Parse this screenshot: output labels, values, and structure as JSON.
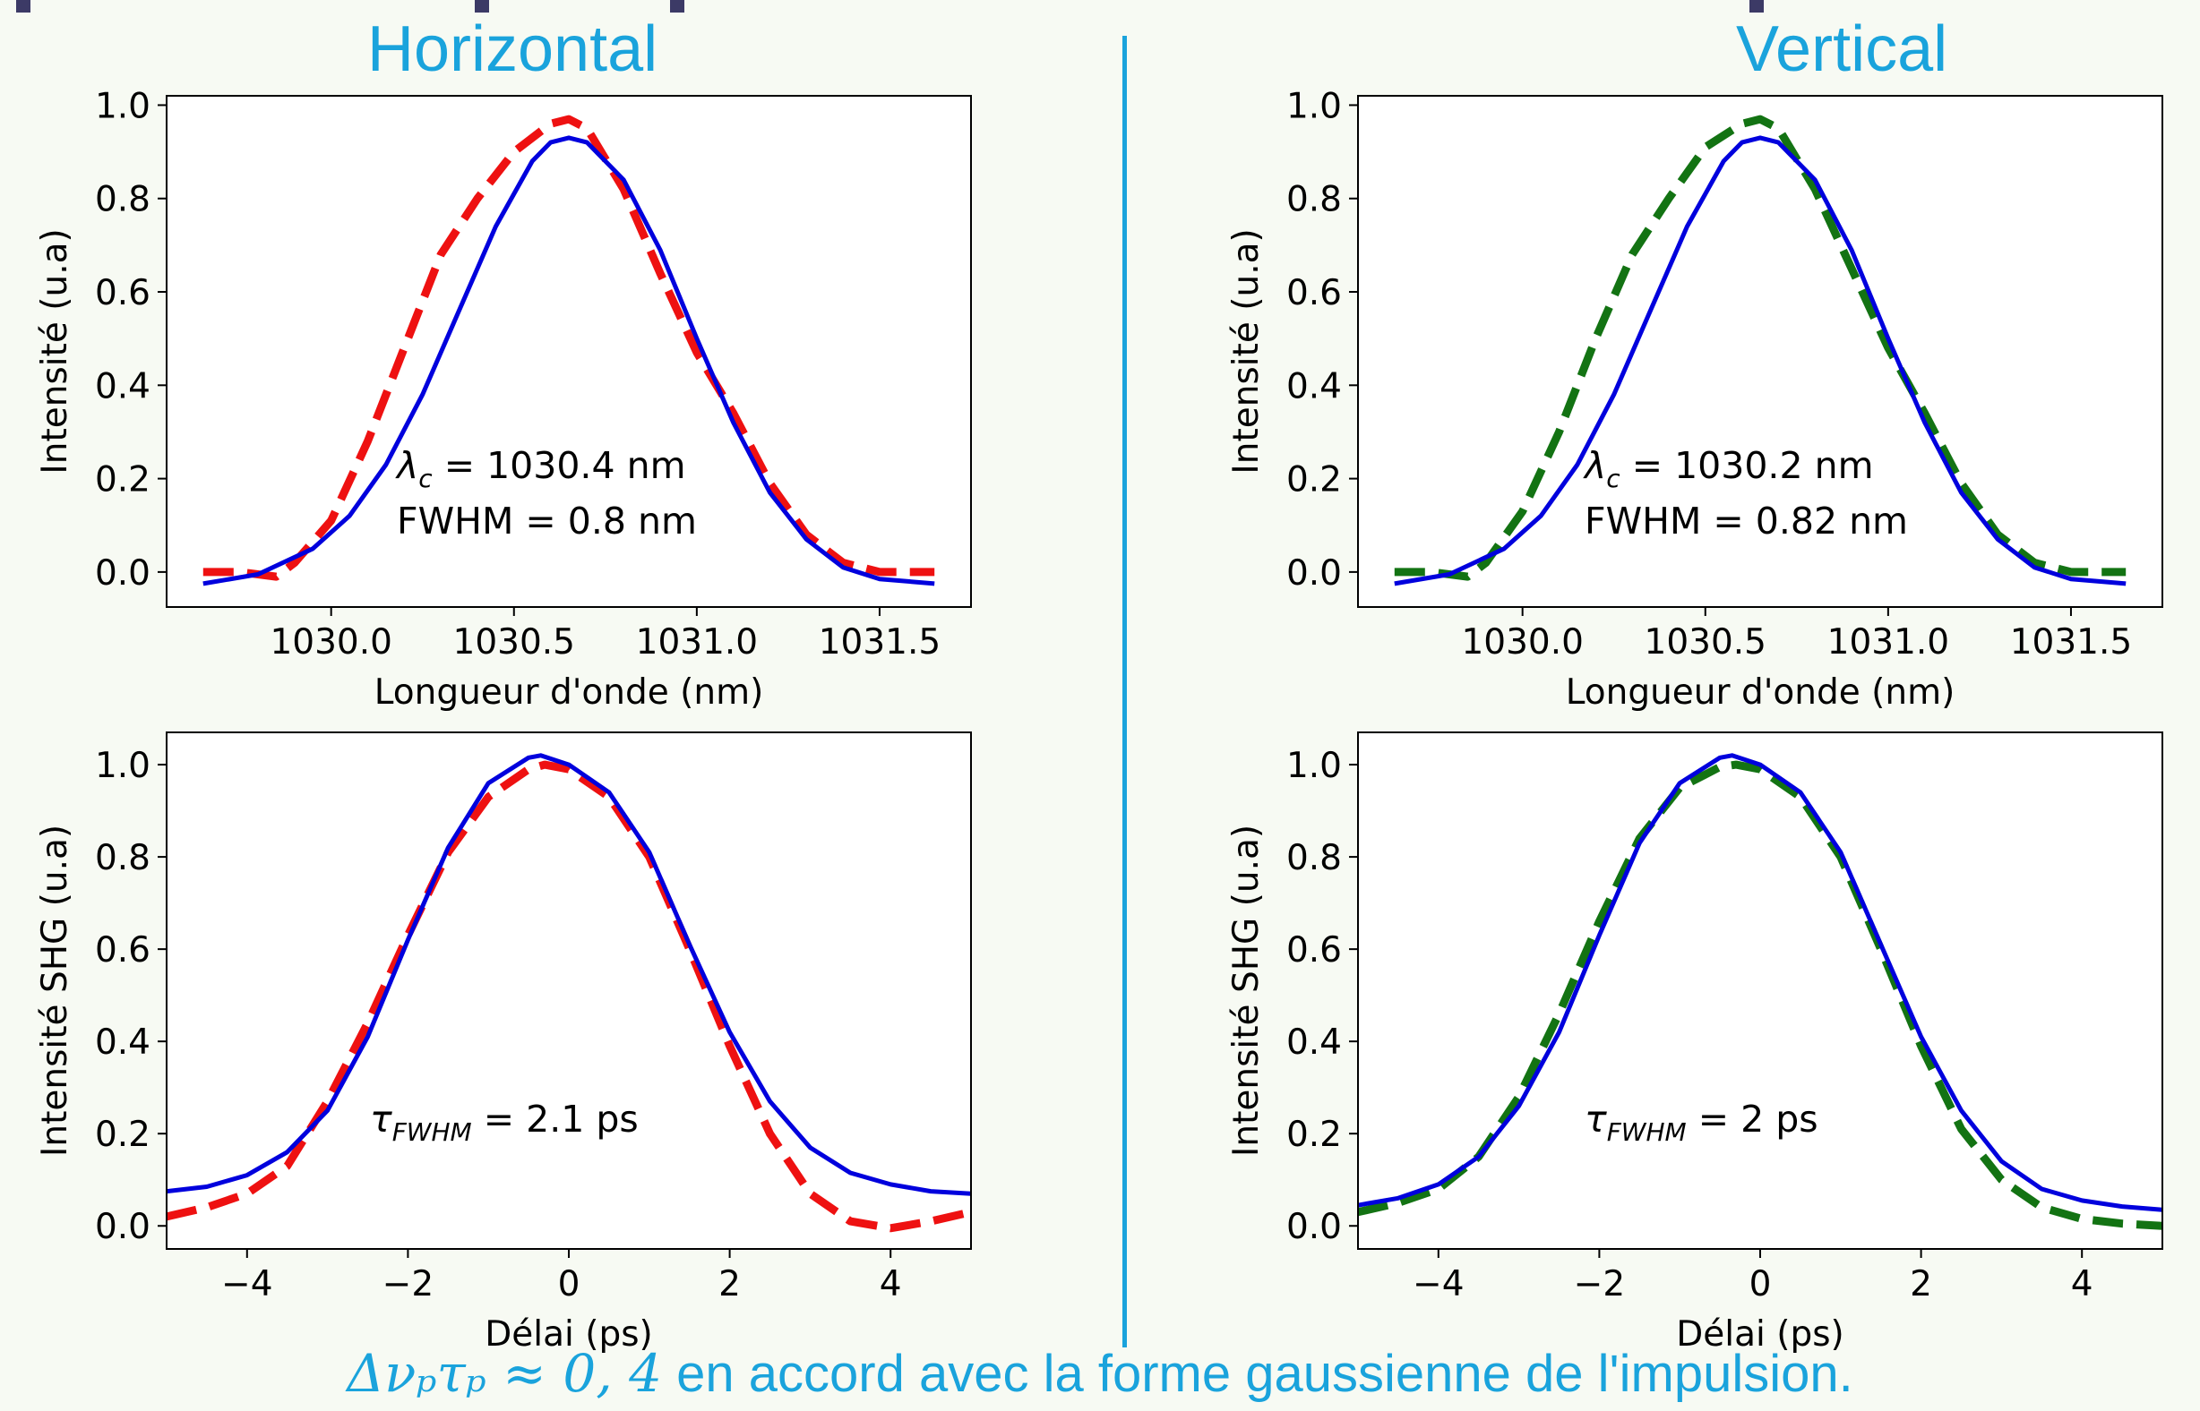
{
  "colors": {
    "title": "#1aa3dc",
    "fit": "#0000dd",
    "horizontal": "#ee1111",
    "vertical": "#137313"
  },
  "titles": {
    "horizontal": "Horizontal",
    "vertical": "Vertical"
  },
  "footer": {
    "math": "Δνₚτₚ ≈ 0, 4",
    "text": " en accord avec la forme gaussienne de l'impulsion."
  },
  "chart_data": [
    {
      "id": "spec-h",
      "type": "line",
      "xlabel": "Longueur d'onde (nm)",
      "ylabel": "Intensité (u.a)",
      "xlim": [
        1029.55,
        1031.75
      ],
      "ylim": [
        -0.075,
        1.02
      ],
      "xticks": [
        1030.0,
        1030.5,
        1031.0,
        1031.5
      ],
      "xtick_labels": [
        "1030.0",
        "1030.5",
        "1031.0",
        "1031.5"
      ],
      "yticks": [
        0.0,
        0.2,
        0.4,
        0.6,
        0.8,
        1.0
      ],
      "ytick_labels": [
        "0.0",
        "0.2",
        "0.4",
        "0.6",
        "0.8",
        "1.0"
      ],
      "annotations": [
        [
          "λ",
          "c",
          " = 1030.4 nm"
        ],
        [
          "FWHM = 0.8 nm"
        ]
      ],
      "series": [
        {
          "style": "dashed",
          "color": "#ee1111",
          "x": [
            1029.65,
            1029.75,
            1029.85,
            1029.9,
            1030.0,
            1030.1,
            1030.2,
            1030.3,
            1030.4,
            1030.5,
            1030.6,
            1030.65,
            1030.7,
            1030.8,
            1030.9,
            1031.0,
            1031.1,
            1031.2,
            1031.3,
            1031.4,
            1031.5,
            1031.6,
            1031.65
          ],
          "y": [
            0.0,
            0.0,
            -0.01,
            0.02,
            0.11,
            0.28,
            0.48,
            0.68,
            0.8,
            0.9,
            0.96,
            0.97,
            0.95,
            0.82,
            0.64,
            0.47,
            0.34,
            0.19,
            0.08,
            0.02,
            0.0,
            0.0,
            0.0
          ]
        },
        {
          "style": "solid",
          "color": "#0000dd",
          "x": [
            1029.65,
            1029.8,
            1029.95,
            1030.05,
            1030.15,
            1030.25,
            1030.35,
            1030.45,
            1030.55,
            1030.6,
            1030.65,
            1030.7,
            1030.8,
            1030.9,
            1031.0,
            1031.1,
            1031.2,
            1031.3,
            1031.4,
            1031.5,
            1031.65
          ],
          "y": [
            -0.025,
            -0.005,
            0.05,
            0.12,
            0.23,
            0.38,
            0.56,
            0.74,
            0.88,
            0.92,
            0.93,
            0.92,
            0.84,
            0.69,
            0.5,
            0.32,
            0.17,
            0.07,
            0.01,
            -0.015,
            -0.025
          ]
        }
      ]
    },
    {
      "id": "spec-v",
      "type": "line",
      "xlabel": "Longueur d'onde (nm)",
      "ylabel": "Intensité (u.a)",
      "xlim": [
        1029.55,
        1031.75
      ],
      "ylim": [
        -0.075,
        1.02
      ],
      "xticks": [
        1030.0,
        1030.5,
        1031.0,
        1031.5
      ],
      "xtick_labels": [
        "1030.0",
        "1030.5",
        "1031.0",
        "1031.5"
      ],
      "yticks": [
        0.0,
        0.2,
        0.4,
        0.6,
        0.8,
        1.0
      ],
      "ytick_labels": [
        "0.0",
        "0.2",
        "0.4",
        "0.6",
        "0.8",
        "1.0"
      ],
      "annotations": [
        [
          "λ",
          "c",
          " = 1030.2 nm"
        ],
        [
          "FWHM = 0.82 nm"
        ]
      ],
      "series": [
        {
          "style": "dashed",
          "color": "#137313",
          "x": [
            1029.65,
            1029.75,
            1029.85,
            1029.9,
            1030.0,
            1030.1,
            1030.2,
            1030.3,
            1030.4,
            1030.5,
            1030.6,
            1030.65,
            1030.7,
            1030.8,
            1030.9,
            1031.0,
            1031.1,
            1031.2,
            1031.3,
            1031.4,
            1031.5,
            1031.6,
            1031.65
          ],
          "y": [
            0.0,
            0.0,
            -0.01,
            0.02,
            0.13,
            0.3,
            0.5,
            0.68,
            0.8,
            0.91,
            0.96,
            0.97,
            0.95,
            0.82,
            0.65,
            0.48,
            0.34,
            0.19,
            0.08,
            0.02,
            0.0,
            0.0,
            0.0
          ]
        },
        {
          "style": "solid",
          "color": "#0000dd",
          "x": [
            1029.65,
            1029.8,
            1029.95,
            1030.05,
            1030.15,
            1030.25,
            1030.35,
            1030.45,
            1030.55,
            1030.6,
            1030.65,
            1030.7,
            1030.8,
            1030.9,
            1031.0,
            1031.1,
            1031.2,
            1031.3,
            1031.4,
            1031.5,
            1031.65
          ],
          "y": [
            -0.025,
            -0.005,
            0.05,
            0.12,
            0.23,
            0.38,
            0.56,
            0.74,
            0.88,
            0.92,
            0.93,
            0.92,
            0.84,
            0.69,
            0.5,
            0.32,
            0.17,
            0.07,
            0.01,
            -0.015,
            -0.025
          ]
        }
      ]
    },
    {
      "id": "ac-h",
      "type": "line",
      "xlabel": "Délai (ps)",
      "ylabel": "Intensité SHG (u.a)",
      "xlim": [
        -5,
        5
      ],
      "ylim": [
        -0.05,
        1.07
      ],
      "xticks": [
        -4,
        -2,
        0,
        2,
        4
      ],
      "xtick_labels": [
        "−4",
        "−2",
        "0",
        "2",
        "4"
      ],
      "yticks": [
        0.0,
        0.2,
        0.4,
        0.6,
        0.8,
        1.0
      ],
      "ytick_labels": [
        "0.0",
        "0.2",
        "0.4",
        "0.6",
        "0.8",
        "1.0"
      ],
      "annotations": [
        [
          "τ",
          "FWHM",
          " = 2.1 ps"
        ]
      ],
      "series": [
        {
          "style": "dashed",
          "color": "#ee1111",
          "x": [
            -5,
            -4.5,
            -4,
            -3.5,
            -3,
            -2.5,
            -2,
            -1.5,
            -1,
            -0.5,
            -0.3,
            0,
            0.5,
            1,
            1.5,
            2,
            2.5,
            3,
            3.5,
            4,
            4.5,
            5
          ],
          "y": [
            0.02,
            0.04,
            0.07,
            0.13,
            0.27,
            0.44,
            0.63,
            0.81,
            0.93,
            0.99,
            1.0,
            0.99,
            0.93,
            0.8,
            0.6,
            0.39,
            0.2,
            0.07,
            0.01,
            -0.005,
            0.01,
            0.03
          ]
        },
        {
          "style": "solid",
          "color": "#0000dd",
          "x": [
            -5,
            -4.5,
            -4,
            -3.5,
            -3,
            -2.5,
            -2,
            -1.5,
            -1,
            -0.5,
            -0.35,
            0,
            0.5,
            1,
            1.5,
            2,
            2.5,
            3,
            3.5,
            4,
            4.5,
            5
          ],
          "y": [
            0.075,
            0.085,
            0.11,
            0.16,
            0.25,
            0.41,
            0.62,
            0.82,
            0.96,
            1.015,
            1.02,
            1.0,
            0.94,
            0.81,
            0.61,
            0.42,
            0.27,
            0.17,
            0.115,
            0.09,
            0.075,
            0.07
          ]
        }
      ]
    },
    {
      "id": "ac-v",
      "type": "line",
      "xlabel": "Délai (ps)",
      "ylabel": "Intensité SHG (u.a)",
      "xlim": [
        -5,
        5
      ],
      "ylim": [
        -0.05,
        1.07
      ],
      "xticks": [
        -4,
        -2,
        0,
        2,
        4
      ],
      "xtick_labels": [
        "−4",
        "−2",
        "0",
        "2",
        "4"
      ],
      "yticks": [
        0.0,
        0.2,
        0.4,
        0.6,
        0.8,
        1.0
      ],
      "ytick_labels": [
        "0.0",
        "0.2",
        "0.4",
        "0.6",
        "0.8",
        "1.0"
      ],
      "annotations": [
        [
          "τ",
          "FWHM",
          " = 2 ps"
        ]
      ],
      "series": [
        {
          "style": "dashed",
          "color": "#137313",
          "x": [
            -5,
            -4.5,
            -4,
            -3.5,
            -3,
            -2.5,
            -2,
            -1.5,
            -1,
            -0.5,
            -0.3,
            0,
            0.5,
            1,
            1.5,
            2,
            2.5,
            3,
            3.5,
            4,
            4.5,
            5
          ],
          "y": [
            0.03,
            0.05,
            0.08,
            0.15,
            0.28,
            0.46,
            0.66,
            0.84,
            0.95,
            0.995,
            1.0,
            0.99,
            0.93,
            0.8,
            0.6,
            0.39,
            0.21,
            0.1,
            0.04,
            0.015,
            0.005,
            0.0
          ]
        },
        {
          "style": "solid",
          "color": "#0000dd",
          "x": [
            -5,
            -4.5,
            -4,
            -3.5,
            -3,
            -2.5,
            -2,
            -1.5,
            -1,
            -0.5,
            -0.35,
            0,
            0.5,
            1,
            1.5,
            2,
            2.5,
            3,
            3.5,
            4,
            4.5,
            5
          ],
          "y": [
            0.045,
            0.06,
            0.09,
            0.15,
            0.26,
            0.42,
            0.63,
            0.83,
            0.96,
            1.015,
            1.02,
            1.0,
            0.94,
            0.81,
            0.61,
            0.41,
            0.25,
            0.14,
            0.08,
            0.055,
            0.042,
            0.035
          ]
        }
      ]
    }
  ]
}
